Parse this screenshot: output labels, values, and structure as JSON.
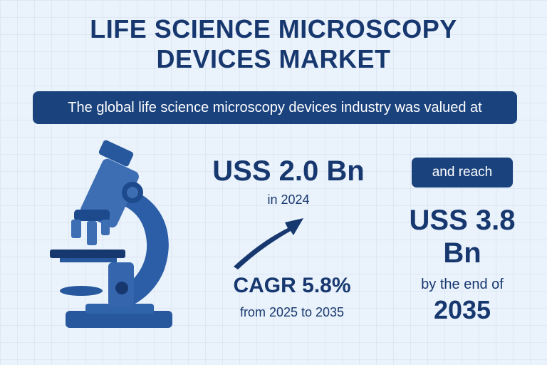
{
  "title": {
    "line1": "LIFE SCIENCE MICROSCOPY",
    "line2": "DEVICES MARKET"
  },
  "banner": {
    "text": "The global life science microscopy devices industry was valued at"
  },
  "current": {
    "value": "USS 2.0 Bn",
    "year_label": "in 2024"
  },
  "growth": {
    "cagr": "CAGR 5.8%",
    "period": "from 2025 to 2035"
  },
  "forecast": {
    "reach_label": "and reach",
    "value_line1": "USS 3.8",
    "value_line2": "Bn",
    "by_label": "by the end of",
    "year": "2035"
  },
  "icons": {
    "illustration": "microscope-icon",
    "trend": "trend-arrow-icon"
  },
  "colors": {
    "navy": "#1a427d",
    "text": "#17386f",
    "blue": "#3d6db3",
    "background": "#eaf2fb"
  }
}
